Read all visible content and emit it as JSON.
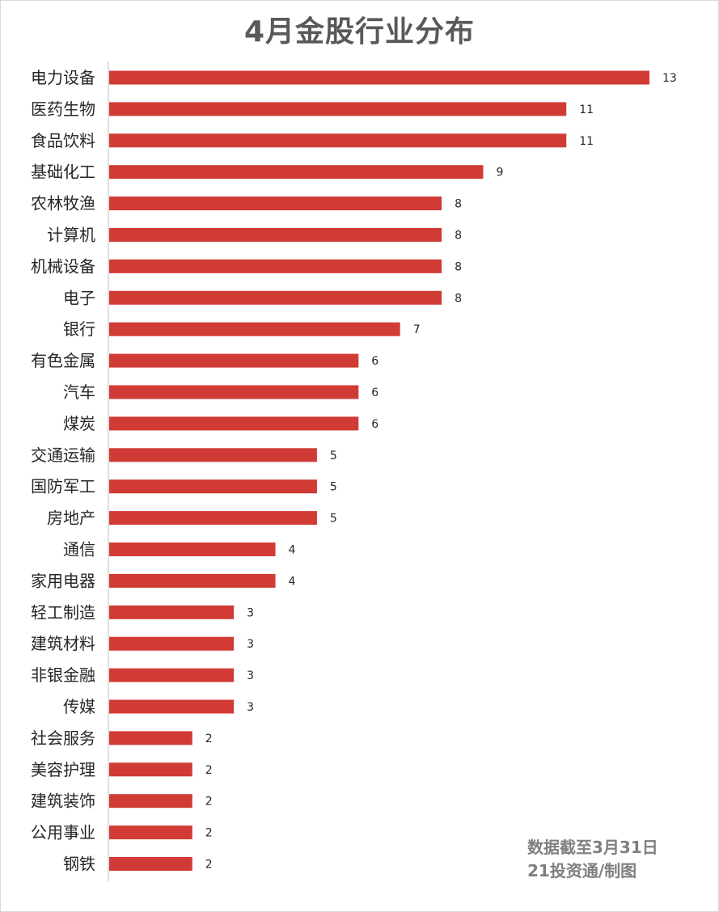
{
  "title": "4月金股行业分布",
  "footnote": {
    "line1": "数据截至3月31日",
    "line2": "21投资通/制图"
  },
  "colors": {
    "bar": "#d13b36",
    "text": "#262626",
    "title": "#595959",
    "footnote": "#7f7f7f",
    "axis": "#bfbfbf"
  },
  "chart_data": {
    "type": "bar",
    "orientation": "horizontal",
    "title": "4月金股行业分布",
    "categories": [
      "电力设备",
      "医药生物",
      "食品饮料",
      "基础化工",
      "农林牧渔",
      "计算机",
      "机械设备",
      "电子",
      "银行",
      "有色金属",
      "汽车",
      "煤炭",
      "交通运输",
      "国防军工",
      "房地产",
      "通信",
      "家用电器",
      "轻工制造",
      "建筑材料",
      "非银金融",
      "传媒",
      "社会服务",
      "美容护理",
      "建筑装饰",
      "公用事业",
      "钢铁"
    ],
    "values": [
      13,
      11,
      11,
      9,
      8,
      8,
      8,
      8,
      7,
      6,
      6,
      6,
      5,
      5,
      5,
      4,
      4,
      3,
      3,
      3,
      3,
      2,
      2,
      2,
      2,
      2
    ],
    "xlim": [
      0,
      13
    ],
    "data_labels": true,
    "grid": false,
    "legend": "none"
  }
}
